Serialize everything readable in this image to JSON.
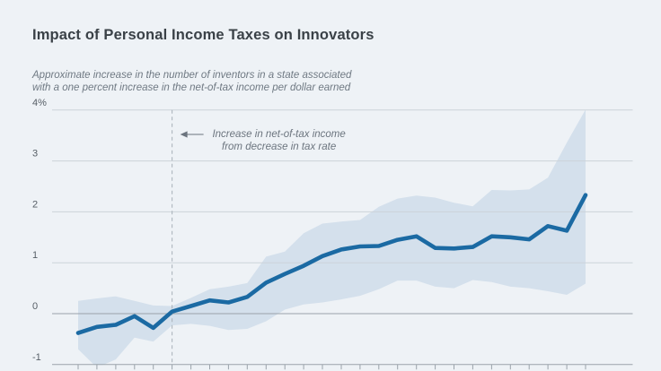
{
  "header": {
    "title": "Impact of Personal Income Taxes on Innovators",
    "subtitle_line1": "Approximate increase in the number of inventors in a state associated",
    "subtitle_line2": "with a one percent increase in the net-of-tax income per dollar earned"
  },
  "chart_data": {
    "type": "line",
    "title": "Impact of Personal Income Taxes on Innovators",
    "xlabel": "",
    "ylabel": "",
    "ylim": [
      -1,
      4
    ],
    "grid": true,
    "legend": "none",
    "x_axis_labels_visible": false,
    "x": [
      -5,
      -4,
      -3,
      -2,
      -1,
      0,
      1,
      2,
      3,
      4,
      5,
      6,
      7,
      8,
      9,
      10,
      11,
      12,
      13,
      14,
      15,
      16,
      17,
      18,
      19,
      20,
      21,
      22
    ],
    "y_ticks": [
      {
        "label": "4%",
        "value": 4
      },
      {
        "label": "3",
        "value": 3
      },
      {
        "label": "2",
        "value": 2
      },
      {
        "label": "1",
        "value": 1
      },
      {
        "label": "0",
        "value": 0
      },
      {
        "label": "-1",
        "value": -1
      }
    ],
    "series": [
      {
        "name": "estimate",
        "values": [
          -0.38,
          -0.26,
          -0.22,
          -0.05,
          -0.28,
          0.04,
          0.15,
          0.26,
          0.22,
          0.33,
          0.61,
          0.78,
          0.94,
          1.13,
          1.26,
          1.32,
          1.33,
          1.45,
          1.52,
          1.29,
          1.28,
          1.31,
          1.52,
          1.5,
          1.46,
          1.72,
          1.63,
          2.33
        ]
      },
      {
        "name": "upper_ci",
        "values": [
          0.25,
          0.3,
          0.34,
          0.25,
          0.16,
          0.15,
          0.31,
          0.48,
          0.53,
          0.6,
          1.12,
          1.22,
          1.58,
          1.77,
          1.81,
          1.84,
          2.1,
          2.26,
          2.32,
          2.28,
          2.18,
          2.11,
          2.43,
          2.42,
          2.44,
          2.67,
          3.36,
          4.01
        ]
      },
      {
        "name": "lower_ci",
        "values": [
          -0.7,
          -1.06,
          -0.9,
          -0.47,
          -0.55,
          -0.23,
          -0.2,
          -0.24,
          -0.32,
          -0.3,
          -0.15,
          0.08,
          0.18,
          0.22,
          0.28,
          0.35,
          0.48,
          0.65,
          0.65,
          0.53,
          0.5,
          0.66,
          0.62,
          0.53,
          0.5,
          0.44,
          0.37,
          0.59
        ]
      }
    ],
    "annotation": {
      "line1": "Increase in net-of-tax income",
      "line2": "from decrease in tax rate",
      "at_event_time": 0
    },
    "colors": {
      "background": "#eef2f6",
      "band": "#d4e0ec",
      "line": "#1b6aa3",
      "grid": "#ccd3d9",
      "axis": "#9aa2aa",
      "dashed": "#a8b0b8",
      "title_text": "#3a4147",
      "muted_text": "#6b747e",
      "tick_label": "#565e66"
    }
  }
}
